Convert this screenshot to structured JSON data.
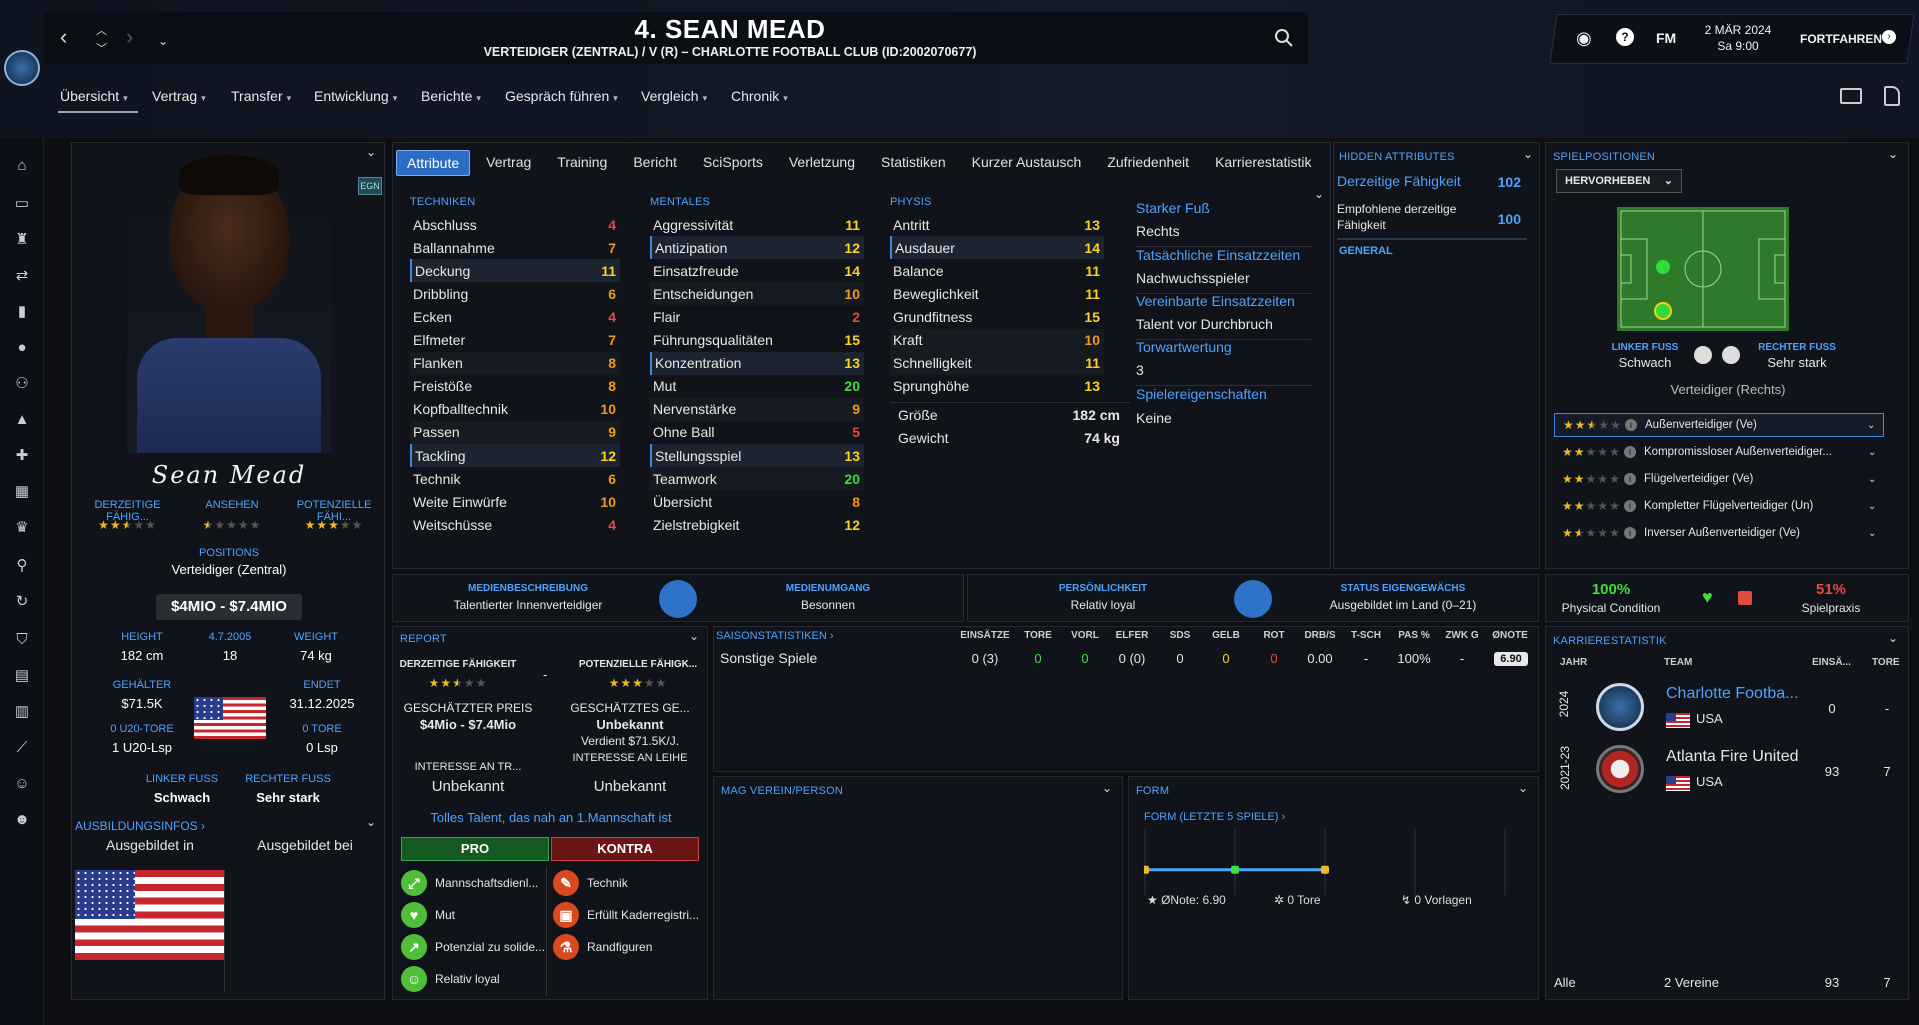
{
  "header": {
    "title": "4. SEAN MEAD",
    "subtitle": "VERTEIDIGER (ZENTRAL) / V (R) – CHARLOTTE FOOTBALL CLUB (ID:2002070677)",
    "brand": "FM",
    "date_line1": "2 MÄR 2024",
    "date_line2": "Sa 9:00",
    "continue_label": "FORTFAHREN"
  },
  "menu": [
    "Übersicht",
    "Vertrag",
    "Transfer",
    "Entwicklung",
    "Berichte",
    "Gespräch führen",
    "Vergleich",
    "Chronik"
  ],
  "tabs": [
    "Attribute",
    "Vertrag",
    "Training",
    "Bericht",
    "SciSports",
    "Verletzung",
    "Statistiken",
    "Kurzer Austausch",
    "Zufriedenheit",
    "Karrierestatistik"
  ],
  "profile": {
    "badge": "EGN",
    "signature": "Sean Mead",
    "ability_label": "DERZEITIGE FÄHIG...",
    "reputation_label": "ANSEHEN",
    "potential_label": "POTENZIELLE FÄHI...",
    "ability_stars": 2.5,
    "reputation_stars": 0.5,
    "potential_stars": 3,
    "positions_label": "POSITIONS",
    "position": "Verteidiger (Zentral)",
    "value": "$4MIO - $7.4MIO",
    "height_label": "HEIGHT",
    "height": "182 cm",
    "dob": "4.7.2005",
    "age": "18",
    "weight_label": "WEIGHT",
    "weight": "74 kg",
    "wage_label": "GEHÄLTER",
    "wage": "$71.5K",
    "ends_label": "ENDET",
    "ends": "31.12.2025",
    "u20_label": "0 U20-TORE",
    "u20": "1 U20-Lsp",
    "goals_label": "0 TORE",
    "apps": "0 Lsp",
    "left_foot_label": "LINKER FUSS",
    "left_foot": "Schwach",
    "right_foot_label": "RECHTER FUSS",
    "right_foot": "Sehr stark",
    "training_info": "AUSBILDUNGSINFOS ›",
    "trained_in": "Ausgebildet in",
    "trained_at": "Ausgebildet bei"
  },
  "attributes": {
    "technik_title": "TECHNIKEN",
    "mental_title": "MENTALES",
    "physis_title": "PHYSIS",
    "technik": [
      {
        "n": "Abschluss",
        "v": 4
      },
      {
        "n": "Ballannahme",
        "v": 7
      },
      {
        "n": "Deckung",
        "v": 11
      },
      {
        "n": "Dribbling",
        "v": 6
      },
      {
        "n": "Ecken",
        "v": 4
      },
      {
        "n": "Elfmeter",
        "v": 7
      },
      {
        "n": "Flanken",
        "v": 8
      },
      {
        "n": "Freistöße",
        "v": 8
      },
      {
        "n": "Kopfballtechnik",
        "v": 10
      },
      {
        "n": "Passen",
        "v": 9
      },
      {
        "n": "Tackling",
        "v": 12
      },
      {
        "n": "Technik",
        "v": 6
      },
      {
        "n": "Weite Einwürfe",
        "v": 10
      },
      {
        "n": "Weitschüsse",
        "v": 4
      }
    ],
    "mental": [
      {
        "n": "Aggressivität",
        "v": 11
      },
      {
        "n": "Antizipation",
        "v": 12
      },
      {
        "n": "Einsatzfreude",
        "v": 14
      },
      {
        "n": "Entscheidungen",
        "v": 10
      },
      {
        "n": "Flair",
        "v": 2
      },
      {
        "n": "Führungsqualitäten",
        "v": 15
      },
      {
        "n": "Konzentration",
        "v": 13
      },
      {
        "n": "Mut",
        "v": 20
      },
      {
        "n": "Nervenstärke",
        "v": 9
      },
      {
        "n": "Ohne Ball",
        "v": 5
      },
      {
        "n": "Stellungsspiel",
        "v": 13
      },
      {
        "n": "Teamwork",
        "v": 20
      },
      {
        "n": "Übersicht",
        "v": 8
      },
      {
        "n": "Zielstrebigkeit",
        "v": 12
      }
    ],
    "physis": [
      {
        "n": "Antritt",
        "v": 13
      },
      {
        "n": "Ausdauer",
        "v": 14
      },
      {
        "n": "Balance",
        "v": 11
      },
      {
        "n": "Beweglichkeit",
        "v": 11
      },
      {
        "n": "Grundfitness",
        "v": 15
      },
      {
        "n": "Kraft",
        "v": 10
      },
      {
        "n": "Schnelligkeit",
        "v": 11
      },
      {
        "n": "Sprunghöhe",
        "v": 13
      }
    ],
    "size_label": "Größe",
    "size": "182 cm",
    "weight_label": "Gewicht",
    "weight": "74 kg",
    "foot_title": "Starker Fuß",
    "foot": "Rechts",
    "actual_time_title": "Tatsächliche Einsatzzeiten",
    "actual_time": "Nachwuchsspieler",
    "agreed_time_title": "Vereinbarte Einsatzzeiten",
    "agreed_time": "Talent vor Durchbruch",
    "gk_title": "Torwartwertung",
    "gk": "3",
    "traits_title": "Spielereigenschaften",
    "traits": "Keine"
  },
  "hidden": {
    "title": "HIDDEN ATTRIBUTES",
    "ca_label": "Derzeitige Fähigkeit",
    "ca": "102",
    "pa_label": "Empfohlene derzeitige Fähigkeit",
    "pa": "100",
    "general": "GENERAL"
  },
  "positions": {
    "title": "SPIELPOSITIONEN",
    "dropdown": "HERVORHEBEN",
    "left_foot_label": "LINKER FUSS",
    "left_foot": "Schwach",
    "right_foot_label": "RECHTER FUSS",
    "right_foot": "Sehr stark",
    "role_title": "Verteidiger (Rechts)",
    "roles": [
      {
        "stars": 2.5,
        "name": "Außenverteidiger (Ve)"
      },
      {
        "stars": 2,
        "name": "Kompromissloser Außenverteidiger..."
      },
      {
        "stars": 2,
        "name": "Flügelverteidiger (Ve)"
      },
      {
        "stars": 2,
        "name": "Kompletter Flügelverteidiger (Un)"
      },
      {
        "stars": 1.5,
        "name": "Inverser Außenverteidiger (Ve)"
      }
    ]
  },
  "media": {
    "desc_label": "MEDIENBESCHREIBUNG",
    "desc": "Talentierter Innenverteidiger",
    "handling_label": "MEDIENUMGANG",
    "handling": "Besonnen",
    "personality_label": "PERSÖNLICHKEIT",
    "personality": "Relativ loyal",
    "homegrown_label": "STATUS EIGENGEWÄCHS",
    "homegrown": "Ausgebildet im Land (0–21)"
  },
  "condition": {
    "pc_value": "100%",
    "pc_label": "Physical Condition",
    "pc_color": "#3ede3c",
    "sp_value": "51%",
    "sp_label": "Spielpraxis",
    "sp_color": "#e14b40"
  },
  "report": {
    "title": "REPORT",
    "ca_label": "DERZEITIGE FÄHIGKEIT",
    "ca_stars": 2.5,
    "dash": "-",
    "pa_label": "POTENZIELLE FÄHIGK...",
    "pa_stars": 3,
    "price_label": "GESCHÄTZTER PREIS",
    "price": "$4Mio - $7.4Mio",
    "wage_label": "GESCHÄTZTES GE...",
    "wage": "Unbekannt",
    "wage_note": "Verdient $71.5K/J.",
    "interest_tr_label": "INTERESSE AN TR...",
    "interest_tr": "Unbekannt",
    "interest_le_label": "INTERESSE AN LEIHE",
    "interest_le": "Unbekannt",
    "summary": "Tolles Talent, das nah an 1.Mannschaft ist",
    "pro_label": "PRO",
    "con_label": "KONTRA",
    "pros": [
      "Mannschaftsdienl...",
      "Mut",
      "Potenzial zu solide...",
      "Relativ loyal"
    ],
    "cons": [
      "Technik",
      "Erfüllt Kaderregistri...",
      "Randfiguren"
    ]
  },
  "season": {
    "title": "SAISONSTATISTIKEN ›",
    "cols": [
      "EINSÄTZE",
      "TORE",
      "VORL",
      "ELFER",
      "SDS",
      "GELB",
      "ROT",
      "DRB/S",
      "T-SCH",
      "PAS %",
      "ZWK G",
      "ØNOTE"
    ],
    "row_label": "Sonstige Spiele",
    "row": [
      "0 (3)",
      "0",
      "0",
      "0 (0)",
      "0",
      "0",
      "0",
      "0.00",
      "-",
      "100%",
      "-",
      "6.90"
    ]
  },
  "mag": {
    "title": "MAG VEREIN/PERSON"
  },
  "form": {
    "title": "FORM",
    "subtitle": "FORM (LETZTE 5 SPIELE) ›",
    "avg": "ØNote: 6.90",
    "goals": "0 Tore",
    "assists": "0 Vorlagen"
  },
  "chart_data": {
    "type": "line",
    "title": "FORM (LETZTE 5 SPIELE)",
    "x": [
      1,
      2,
      3
    ],
    "values": [
      6.9,
      6.9,
      6.9
    ],
    "point_colors": [
      "#f0b928",
      "#3ede3c",
      "#f0b928"
    ],
    "line_color": "#4da3ff"
  },
  "career": {
    "title": "KARRIERESTATISTIK",
    "col_year": "JAHR",
    "col_team": "TEAM",
    "col_apps": "EINSÄ...",
    "col_goals": "TORE",
    "rows": [
      {
        "year": "2024",
        "team": "Charlotte Footba...",
        "country": "USA",
        "apps": "0",
        "goals": "-"
      },
      {
        "year": "2021-23",
        "team": "Atlanta Fire United",
        "country": "USA",
        "apps": "93",
        "goals": "7"
      }
    ],
    "total_label": "Alle",
    "total_clubs": "2 Vereine",
    "total_apps": "93",
    "total_goals": "7"
  }
}
